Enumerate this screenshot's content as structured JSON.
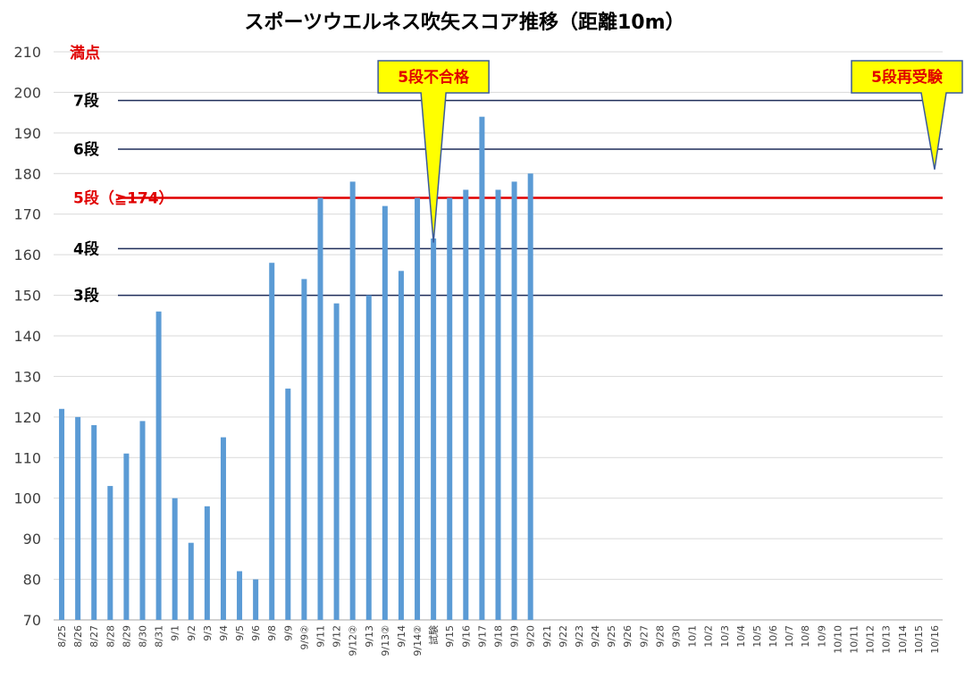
{
  "chart_data": {
    "type": "bar",
    "title": "スポーツウエルネス吹矢スコア推移（距離10m）",
    "ylim": [
      70,
      210
    ],
    "yticks": [
      70,
      80,
      90,
      100,
      110,
      120,
      130,
      140,
      150,
      160,
      170,
      180,
      190,
      200,
      210
    ],
    "grid": true,
    "bar_color": "#5b9bd5",
    "categories": [
      "8/25",
      "8/26",
      "8/27",
      "8/28",
      "8/29",
      "8/30",
      "8/31",
      "9/1",
      "9/2",
      "9/3",
      "9/4",
      "9/5",
      "9/6",
      "9/8",
      "9/9",
      "9/9②",
      "9/11",
      "9/12",
      "9/12②",
      "9/13",
      "9/13②",
      "9/14",
      "9/14②",
      "試験",
      "9/15",
      "9/16",
      "9/17",
      "9/18",
      "9/19",
      "9/20",
      "9/21",
      "9/22",
      "9/23",
      "9/24",
      "9/25",
      "9/26",
      "9/27",
      "9/28",
      "9/30",
      "10/1",
      "10/2",
      "10/3",
      "10/4",
      "10/5",
      "10/6",
      "10/7",
      "10/8",
      "10/9",
      "10/10",
      "10/11",
      "10/12",
      "10/13",
      "10/14",
      "10/15",
      "10/16"
    ],
    "values": [
      122,
      120,
      118,
      103,
      111,
      119,
      146,
      100,
      89,
      98,
      115,
      82,
      80,
      158,
      127,
      154,
      174,
      148,
      178,
      150,
      172,
      156,
      174,
      164,
      174,
      176,
      194,
      176,
      178,
      180,
      null,
      null,
      null,
      null,
      null,
      null,
      null,
      null,
      null,
      null,
      null,
      null,
      null,
      null,
      null,
      null,
      null,
      null,
      null,
      null,
      null,
      null,
      null,
      null,
      null
    ],
    "reference_lines": [
      {
        "label": "7段",
        "value": 198,
        "color": "#1f2d5a",
        "label_color": "#000000"
      },
      {
        "label": "6段",
        "value": 186,
        "color": "#1f2d5a",
        "label_color": "#000000"
      },
      {
        "label": "5段（≧174）",
        "value": 174,
        "color": "#e00000",
        "label_color": "#e00000"
      },
      {
        "label": "4段",
        "value": 161.5,
        "color": "#1f2d5a",
        "label_color": "#000000"
      },
      {
        "label": "3段",
        "value": 150,
        "color": "#1f2d5a",
        "label_color": "#000000"
      }
    ],
    "top_label": {
      "label": "満点",
      "value": 210,
      "color": "#e00000"
    },
    "annotations": [
      {
        "text": "5段不合格",
        "target_category": "試験",
        "target_value": 163
      },
      {
        "text": "5段再受験",
        "target_category": "10/16",
        "target_value": 181
      }
    ]
  }
}
